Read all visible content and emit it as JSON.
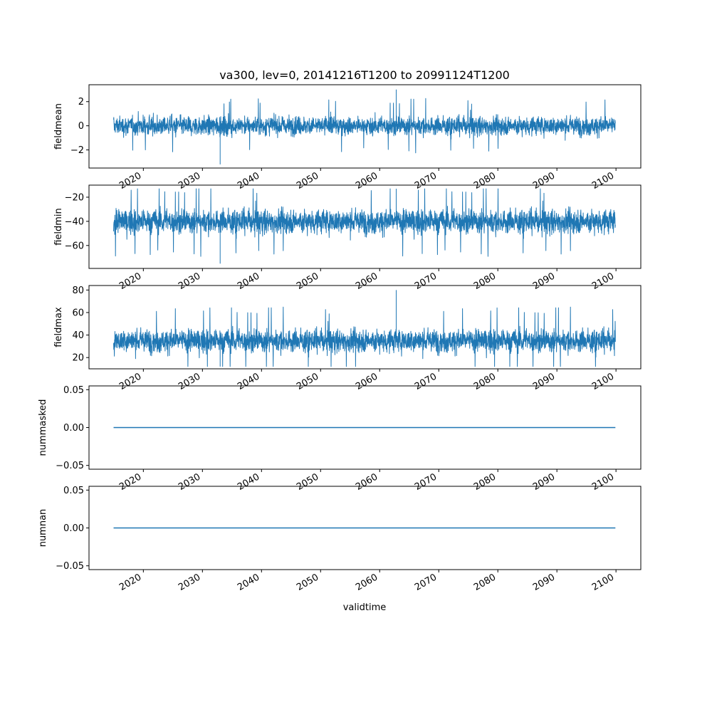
{
  "chart_data": {
    "type": "line",
    "title": "va300, lev=0, 20141216T1200 to 20991124T1200",
    "xlabel": "validtime",
    "x_tick_labels": [
      "2020",
      "2030",
      "2040",
      "2050",
      "2060",
      "2070",
      "2080",
      "2090",
      "2100"
    ],
    "x_tick_values": [
      2020,
      2030,
      2040,
      2050,
      2060,
      2070,
      2080,
      2090,
      2100
    ],
    "xlim": [
      2010.8,
      2104.2
    ],
    "x_range": [
      2014.96,
      2099.9
    ],
    "line_color": "#1f77b4",
    "panels": [
      {
        "ylabel": "fieldmean",
        "ylim": [
          -3.5,
          3.4
        ],
        "y_ticks": [
          -2,
          0,
          2
        ],
        "y_tick_labels": [
          "−2",
          "0",
          "2"
        ],
        "series": {
          "typical_low": -1.6,
          "typical_high": 1.8,
          "min": -3.2,
          "max": 3.0,
          "center": 0.0
        }
      },
      {
        "ylabel": "fieldmin",
        "ylim": [
          -79,
          -10
        ],
        "y_ticks": [
          -60,
          -40,
          -20
        ],
        "y_tick_labels": [
          "−60",
          "−40",
          "−20"
        ],
        "series": {
          "typical_low": -62,
          "typical_high": -18,
          "min": -75,
          "max": -13,
          "center": -40
        }
      },
      {
        "ylabel": "fieldmax",
        "ylim": [
          10,
          84
        ],
        "y_ticks": [
          20,
          40,
          60,
          80
        ],
        "y_tick_labels": [
          "20",
          "40",
          "60",
          "80"
        ],
        "series": {
          "typical_low": 17,
          "typical_high": 62,
          "min": 12,
          "max": 80,
          "center": 35
        }
      },
      {
        "ylabel": "nummasked",
        "ylim": [
          -0.055,
          0.055
        ],
        "y_ticks": [
          -0.05,
          0.0,
          0.05
        ],
        "y_tick_labels": [
          "−0.05",
          "0.00",
          "0.05"
        ],
        "series": {
          "constant": 0.0
        }
      },
      {
        "ylabel": "numnan",
        "ylim": [
          -0.055,
          0.055
        ],
        "y_ticks": [
          -0.05,
          0.0,
          0.05
        ],
        "y_tick_labels": [
          "−0.05",
          "0.00",
          "0.05"
        ],
        "series": {
          "constant": 0.0
        }
      }
    ]
  }
}
